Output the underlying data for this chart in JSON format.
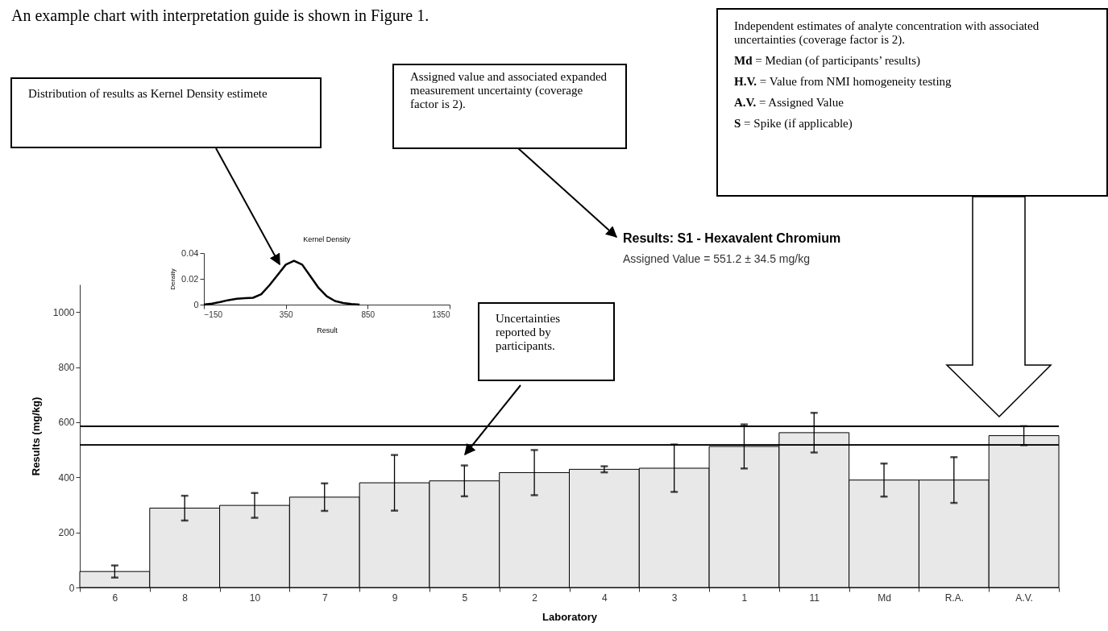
{
  "chart_data": [
    {
      "type": "bar",
      "title": "Results: S1 - Hexavalent Chromium",
      "subtitle": "Assigned Value = 551.2 ± 34.5 mg/kg",
      "xlabel": "Laboratory",
      "ylabel": "Results (mg/kg)",
      "categories": [
        "6",
        "8",
        "10",
        "7",
        "9",
        "5",
        "2",
        "4",
        "3",
        "1",
        "11",
        "Md",
        "R.A.",
        "A.V."
      ],
      "series": [
        {
          "color": "#e8e8e8",
          "values": [
            58,
            288,
            298,
            328,
            380,
            387,
            417,
            429,
            433,
            512,
            562,
            390,
            390,
            551.2
          ],
          "errors": [
            22,
            45,
            45,
            50,
            101,
            56,
            82,
            11,
            86,
            80,
            72,
            60,
            83,
            34.5
          ]
        }
      ],
      "ylim": [
        0,
        1100
      ],
      "yticks": [
        0,
        200,
        400,
        600,
        800,
        1000
      ],
      "grid": false,
      "legend": false,
      "ref_lines": [
        {
          "axis": "y",
          "value": 585.7
        },
        {
          "axis": "y",
          "value": 516.7
        }
      ],
      "annotations": [
        "An example chart with interpretation guide is shown in Figure 1.",
        "Distribution of results as Kernel Density estimete",
        "Assigned value and associated expanded measurement uncertainty (coverage factor is 2).",
        "Independent estimates of analyte concentration with associated uncertainties (coverage factor is 2).",
        "Md  = Median (of participants’ results)",
        "H.V. = Value from NMI homogeneity testing",
        "A.V. = Assigned Value",
        "S = Spike (if applicable)",
        "Uncertainties reported by participants."
      ]
    },
    {
      "type": "line",
      "title": "Kernel Density",
      "xlabel": "Result",
      "ylabel": "Density",
      "x": [
        -150,
        -100,
        -50,
        0,
        50,
        100,
        150,
        200,
        250,
        300,
        350,
        400,
        450,
        500,
        550,
        600,
        650,
        700,
        750,
        800
      ],
      "series": [
        {
          "color": "#000000",
          "values": [
            0,
            0.0008,
            0.002,
            0.0035,
            0.0045,
            0.005,
            0.0053,
            0.008,
            0.015,
            0.023,
            0.031,
            0.034,
            0.031,
            0.022,
            0.013,
            0.0065,
            0.0028,
            0.0012,
            0.0004,
            0
          ]
        }
      ],
      "xlim": [
        -150,
        1350
      ],
      "xticks": [
        -150,
        350,
        850,
        1350
      ],
      "ylim": [
        0,
        0.04
      ],
      "yticks": [
        0,
        0.02,
        0.04
      ],
      "grid": false,
      "legend": false,
      "marker": "none"
    }
  ]
}
